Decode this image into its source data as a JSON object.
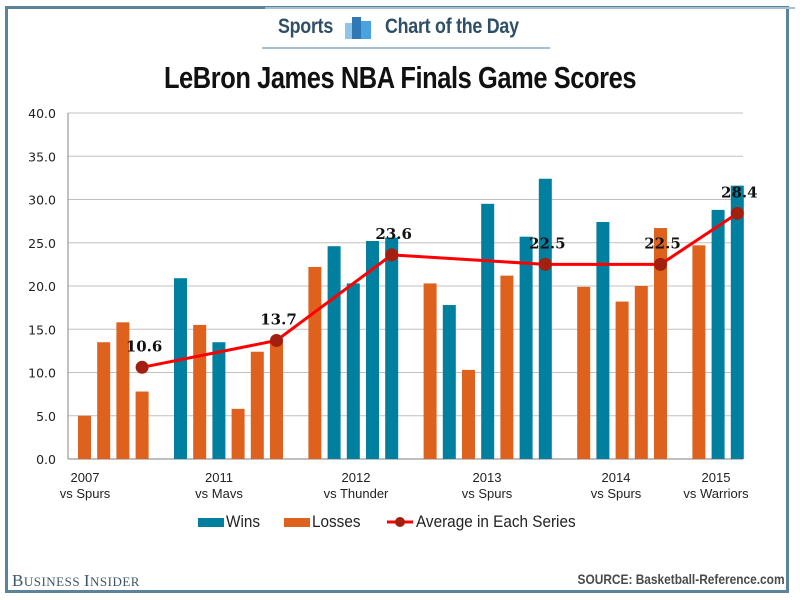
{
  "header": {
    "section": "Sports",
    "feature": "Chart of the Day",
    "logo_icon": "bar-chart-icon"
  },
  "colors": {
    "wins": "#007f9f",
    "losses": "#de621d",
    "average_line": "#ff0000",
    "average_marker": "#a31f10",
    "frame": "#5b8399"
  },
  "chart_data": {
    "type": "bar",
    "title": "LeBron James NBA Finals Game Scores",
    "xlabel": "",
    "ylabel": "",
    "ylim": [
      0,
      40
    ],
    "yticks": [
      "0.0",
      "5.0",
      "10.0",
      "15.0",
      "20.0",
      "25.0",
      "30.0",
      "35.0",
      "40.0"
    ],
    "grid": true,
    "legend_position": "bottom",
    "legend": [
      "Wins",
      "Losses",
      "Average in Each Series"
    ],
    "series_groups": [
      {
        "year": "2007",
        "opponent": "vs Spurs",
        "games": [
          {
            "result": "Losses",
            "value": 5.0
          },
          {
            "result": "Losses",
            "value": 13.5
          },
          {
            "result": "Losses",
            "value": 15.8
          },
          {
            "result": "Losses",
            "value": 7.8
          }
        ],
        "average": 10.6,
        "average_label": "10.6"
      },
      {
        "year": "2011",
        "opponent": "vs Mavs",
        "games": [
          {
            "result": "Wins",
            "value": 20.9
          },
          {
            "result": "Losses",
            "value": 15.5
          },
          {
            "result": "Wins",
            "value": 13.5
          },
          {
            "result": "Losses",
            "value": 5.8
          },
          {
            "result": "Losses",
            "value": 12.4
          },
          {
            "result": "Losses",
            "value": 13.6
          }
        ],
        "average": 13.7,
        "average_label": "13.7"
      },
      {
        "year": "2012",
        "opponent": "vs Thunder",
        "games": [
          {
            "result": "Losses",
            "value": 22.2
          },
          {
            "result": "Wins",
            "value": 24.6
          },
          {
            "result": "Wins",
            "value": 20.3
          },
          {
            "result": "Wins",
            "value": 25.2
          },
          {
            "result": "Wins",
            "value": 25.6
          }
        ],
        "average": 23.6,
        "average_label": "23.6"
      },
      {
        "year": "2013",
        "opponent": "vs Spurs",
        "games": [
          {
            "result": "Losses",
            "value": 20.3
          },
          {
            "result": "Wins",
            "value": 17.8
          },
          {
            "result": "Losses",
            "value": 10.3
          },
          {
            "result": "Wins",
            "value": 29.5
          },
          {
            "result": "Losses",
            "value": 21.2
          },
          {
            "result": "Wins",
            "value": 25.7
          },
          {
            "result": "Wins",
            "value": 32.4
          }
        ],
        "average": 22.5,
        "average_label": "22.5"
      },
      {
        "year": "2014",
        "opponent": "vs Spurs",
        "games": [
          {
            "result": "Losses",
            "value": 19.9
          },
          {
            "result": "Wins",
            "value": 27.4
          },
          {
            "result": "Losses",
            "value": 18.2
          },
          {
            "result": "Losses",
            "value": 20.0
          },
          {
            "result": "Losses",
            "value": 26.7
          }
        ],
        "average": 22.5,
        "average_label": "22.5"
      },
      {
        "year": "2015",
        "opponent": "vs Warriors",
        "games": [
          {
            "result": "Losses",
            "value": 24.7
          },
          {
            "result": "Wins",
            "value": 28.8
          },
          {
            "result": "Wins",
            "value": 31.6
          }
        ],
        "average": 28.4,
        "average_label": "28.4"
      }
    ]
  },
  "footer": {
    "brand": "Business Insider",
    "brand_first": "B",
    "brand_rest1": "USINESS ",
    "brand_i": "I",
    "brand_rest2": "NSIDER",
    "source": "SOURCE: Basketball-Reference.com"
  }
}
